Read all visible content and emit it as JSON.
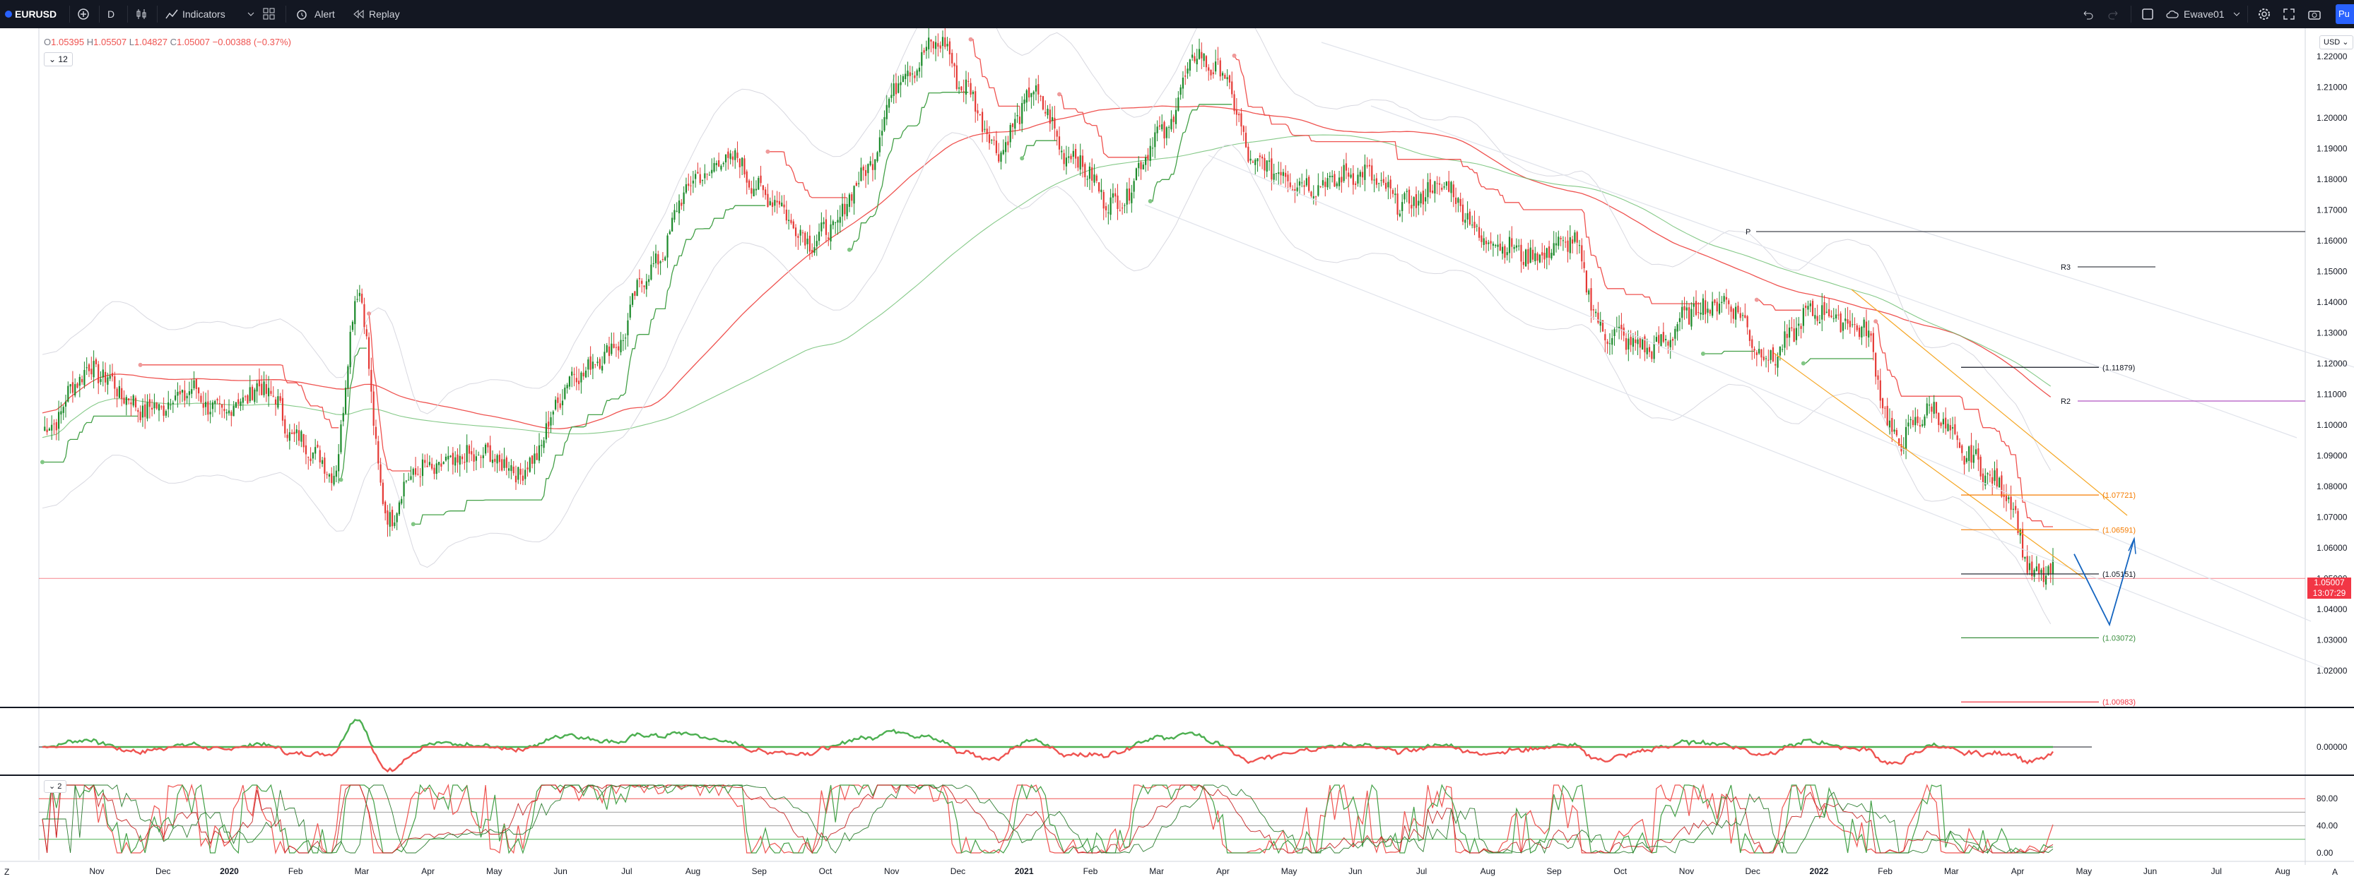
{
  "toolbar": {
    "symbol": "EURUSD",
    "interval": "D",
    "indicators_label": "Indicators",
    "alert_label": "Alert",
    "replay_label": "Replay",
    "layout_name": "Ewave01",
    "publish_label": "Pu"
  },
  "legend": {
    "o_label": "O",
    "o": "1.05395",
    "h_label": "H",
    "h": "1.05507",
    "l_label": "L",
    "l": "1.04827",
    "c_label": "C",
    "c": "1.05007",
    "change": "−0.00388 (−0.37%)",
    "collapse_count": "12"
  },
  "currency": "USD",
  "current_price": {
    "value": "1.05007",
    "countdown": "13:07:29"
  },
  "price_axis": [
    "1.22000",
    "1.21000",
    "1.20000",
    "1.19000",
    "1.18000",
    "1.17000",
    "1.16000",
    "1.15000",
    "1.14000",
    "1.13000",
    "1.12000",
    "1.11000",
    "1.10000",
    "1.09000",
    "1.08000",
    "1.07000",
    "1.06000",
    "1.05000",
    "1.04000",
    "1.03000",
    "1.02000"
  ],
  "fib_labels": [
    "(1.11879)",
    "(1.07721)",
    "(1.06591)",
    "(1.05151)",
    "(1.03072)",
    "(1.00983)"
  ],
  "pivot_labels": {
    "p": "P",
    "r3": "R3",
    "r2": "R2"
  },
  "osc1": {
    "axis": "0.00000"
  },
  "osc2": {
    "axis": [
      "80.00",
      "40.00",
      "0.00"
    ],
    "btn": "2"
  },
  "time_axis": [
    "Nov",
    "Dec",
    "2020",
    "Feb",
    "Mar",
    "Apr",
    "May",
    "Jun",
    "Jul",
    "Aug",
    "Sep",
    "Oct",
    "Nov",
    "Dec",
    "2021",
    "Feb",
    "Mar",
    "Apr",
    "May",
    "Jun",
    "Jul",
    "Aug",
    "Sep",
    "Oct",
    "Nov",
    "Dec",
    "2022",
    "Feb",
    "Mar",
    "Apr",
    "May",
    "Jun",
    "Jul",
    "Aug"
  ],
  "bottom": {
    "tz": "Z",
    "auto": "A"
  },
  "colors": {
    "up": "#26a69a",
    "bull": "#1b8a2a",
    "bear": "#e53935",
    "accent": "#2962ff",
    "fib": "#f57c00"
  }
}
